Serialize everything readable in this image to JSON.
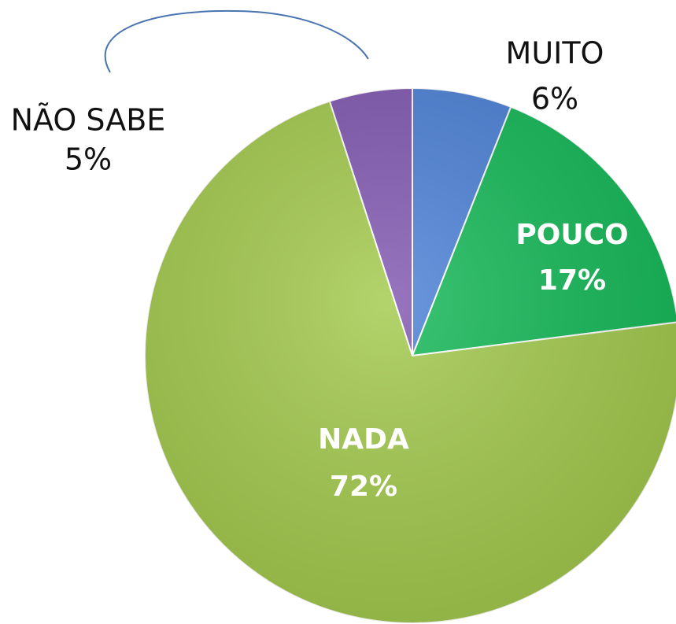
{
  "chart_data": {
    "type": "pie",
    "categories": [
      "MUITO",
      "POUCO",
      "NADA",
      "NÃO SABE"
    ],
    "values": [
      6,
      17,
      72,
      5
    ],
    "value_labels": [
      "6%",
      "17%",
      "72%",
      "5%"
    ],
    "colors": [
      "#4a80d6",
      "#12b856",
      "#a2c94b",
      "#8057b0"
    ]
  }
}
